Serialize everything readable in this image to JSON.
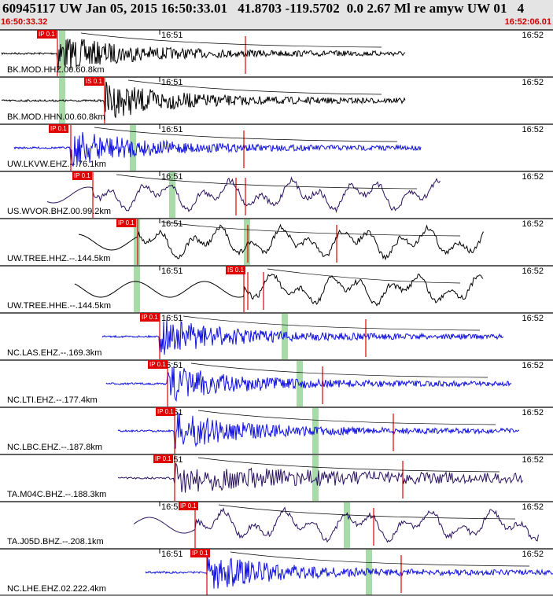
{
  "header": {
    "title": "60945117 UW Jan 05, 2015 16:50:33.01   41.8703 -119.5702  0.0 2.67 Ml re amyw UW 01   4",
    "start_time": "16:50:33.32",
    "end_time": "16:52:06.01"
  },
  "time_ticks": [
    "16:51",
    "16:52"
  ],
  "colors": {
    "black": "#000000",
    "blue": "#1010e0",
    "purple": "#2a1260",
    "pick_red": "#e00000",
    "window_green": "#a8dba8",
    "header_bg": "#e4e4e4"
  },
  "traces": [
    {
      "label": "BK.MOD.HHZ.00.60.8km",
      "color": "black",
      "pick": "IP 0.1"
    },
    {
      "label": "BK.MOD.HHN.00.60.8km",
      "color": "black",
      "pick": "IS 0.1"
    },
    {
      "label": "UW.LKVW.EHZ.--.76.1km",
      "color": "blue",
      "pick": "IP 0.1"
    },
    {
      "label": "US.WVOR.BHZ.00.99.2km",
      "color": "purple",
      "pick": "IP 0.1"
    },
    {
      "label": "UW.TREE.HHZ.--.144.5km",
      "color": "black",
      "pick": "IP 0.1"
    },
    {
      "label": "UW.TREE.HHE.--.144.5km",
      "color": "black",
      "pick": "IS 0.1"
    },
    {
      "label": "NC.LAS.EHZ.--.169.3km",
      "color": "blue",
      "pick": "IP 0.1"
    },
    {
      "label": "NC.LTI.EHZ.--.177.4km",
      "color": "blue",
      "pick": "IP 0.1"
    },
    {
      "label": "NC.LBC.EHZ.--.187.8km",
      "color": "blue",
      "pick": "IP 0.1"
    },
    {
      "label": "TA.M04C.BHZ.--.188.3km",
      "color": "purple",
      "pick": "IP 0.1"
    },
    {
      "label": "TA.J05D.BHZ.--.208.1km",
      "color": "purple",
      "pick": "IP 0.1"
    },
    {
      "label": "NC.LHE.EHZ.02.222.4km",
      "color": "blue",
      "pick": "IP 0.1"
    }
  ]
}
